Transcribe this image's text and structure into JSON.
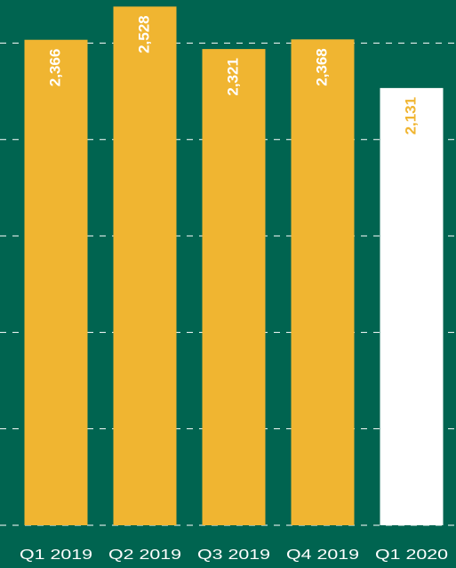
{
  "chart_data": {
    "type": "bar",
    "categories": [
      "Q1 2019",
      "Q2 2019",
      "Q3 2019",
      "Q4 2019",
      "Q1 2020"
    ],
    "values": [
      2366,
      2528,
      2321,
      2368,
      2131
    ],
    "value_labels": [
      "2,366",
      "2,528",
      "2,321",
      "2,368",
      "2,131"
    ],
    "colors": [
      "#f0b531",
      "#f0b531",
      "#f0b531",
      "#f0b531",
      "#ffffff"
    ],
    "label_colors": [
      "#ffffff",
      "#ffffff",
      "#ffffff",
      "#ffffff",
      "#f0b531"
    ],
    "ylim": [
      0,
      2560
    ],
    "yticks": [
      0,
      470,
      940,
      1410,
      1880,
      2350
    ],
    "grid": true
  }
}
